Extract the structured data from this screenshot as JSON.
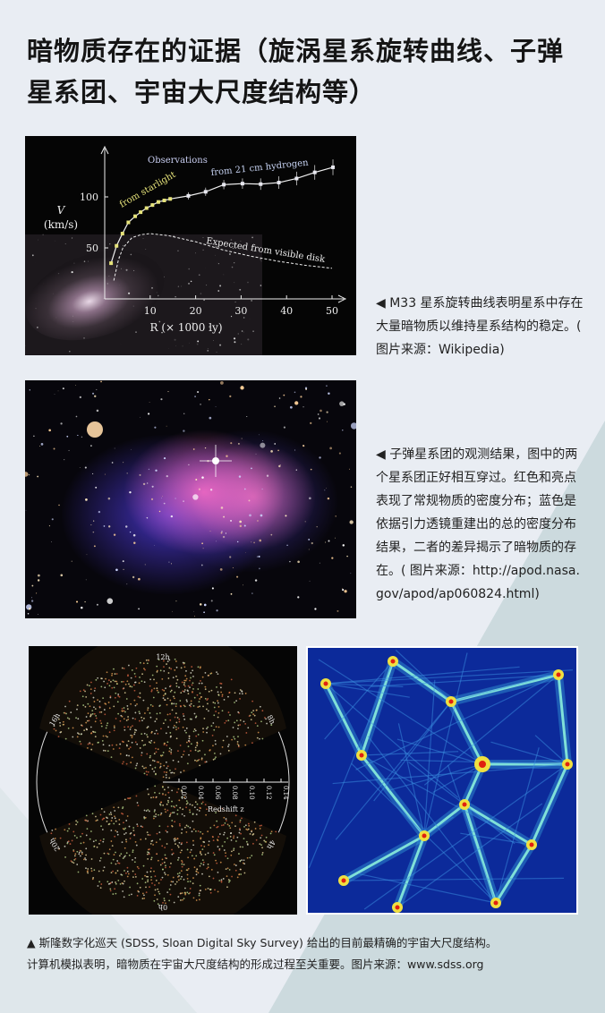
{
  "title": "暗物质存在的证据（旋涡星系旋转曲线、子弹星系团、宇宙大尺度结构等）",
  "figure1": {
    "caption": "◀ M33 星系旋转曲线表明星系中存在大量暗物质以维持星系结构的稳定。( 图片来源：Wikipedia)",
    "chart_data": {
      "type": "line",
      "xlabel": "R (× 1000 ly)",
      "ylabel": "V (km/s)",
      "xlim": [
        0,
        52
      ],
      "ylim": [
        0,
        130
      ],
      "xticks": [
        "10",
        "20",
        "30",
        "40",
        "50"
      ],
      "yticks": [
        "50",
        "100"
      ],
      "annotations": [
        "Observations",
        "from starlight",
        "from 21 cm hydrogen",
        "Expected from visible disk"
      ],
      "series": [
        {
          "name": "from starlight",
          "color": "#e6e37a",
          "x": [
            1.4,
            2.6,
            3.9,
            5.2,
            6.7,
            7.9,
            9.2,
            10.5,
            11.8,
            13.1,
            14.4
          ],
          "y": [
            35,
            52,
            64,
            75,
            81,
            85,
            89,
            92,
            95,
            96.5,
            98
          ]
        },
        {
          "name": "from 21 cm hydrogen",
          "color": "#e8e8f0",
          "x": [
            18.4,
            22.2,
            26.2,
            30.3,
            34.3,
            38.3,
            42.2,
            46.2,
            50.2
          ],
          "y": [
            101,
            105,
            112,
            113,
            112.5,
            114,
            118,
            124,
            129
          ]
        },
        {
          "name": "Expected from visible disk",
          "style": "dashed",
          "x": [
            2,
            3,
            4,
            6,
            8,
            10,
            14,
            20,
            26,
            32,
            38,
            44,
            50
          ],
          "y": [
            18,
            38,
            50,
            60,
            63,
            64,
            62,
            56,
            48,
            42,
            37,
            33,
            30
          ]
        }
      ]
    }
  },
  "figure2": {
    "caption": "◀ 子弹星系团的观测结果，图中的两个星系团正好相互穿过。红色和亮点表现了常规物质的密度分布；蓝色是依据引力透镜重建出的总的密度分布结果，二者的差异揭示了暗物质的存在。( 图片来源：http://apod.nasa.gov/apod/ap060824.html)"
  },
  "figure3": {
    "hours": [
      "12h",
      "8h",
      "4h",
      "0h",
      "20h",
      "16h"
    ],
    "redshift_ticks": [
      "0.02",
      "0.04",
      "0.06",
      "0.08",
      "0.10",
      "0.12",
      "0.14"
    ],
    "redshift_label": "Redshift z",
    "caption_line1": "▲ 斯隆数字化巡天 (SDSS, Sloan Digital Sky Survey) 给出的目前最精确的宇宙大尺度结构。",
    "caption_line2": "计算机模拟表明，暗物质在宇宙大尺度结构的形成过程至关重要。图片来源：www.sdss.org"
  },
  "colors": {
    "background": "#e9edf3",
    "accent_shape": "#c9d8de"
  }
}
